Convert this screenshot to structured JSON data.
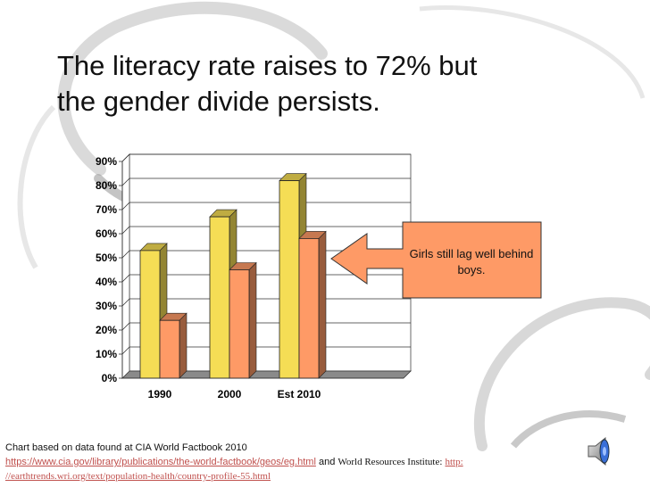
{
  "slide": {
    "title_line1": "The literacy rate raises to 72% but",
    "title_line2": "the gender divide persists.",
    "callout": "Girls still lag well behind boys.",
    "source_line1": "Chart based on data found at CIA World Factbook 2010",
    "source_link1": "https://www.cia.gov/library/publications/the-world-factbook/geos/eg.html",
    "source_and": "and",
    "source_wri": "World Resources Institute:",
    "source_link2_part1": "http:",
    "source_link2_part2": "//earthtrends.wri.org/text/population-health/country-profile-55.html",
    "speaker_icon": "speaker-icon"
  },
  "colors": {
    "boys": "#f5dd55",
    "girls": "#fe9a66",
    "callout_fill": "#fe9a66",
    "link": "#c0504d"
  },
  "chart_data": {
    "type": "bar",
    "categories": [
      "1990",
      "2000",
      "Est 2010"
    ],
    "series": [
      {
        "values": [
          53,
          67,
          82
        ]
      },
      {
        "values": [
          24,
          45,
          58
        ]
      }
    ],
    "ylim": [
      0,
      90
    ],
    "ytick_labels": [
      "0%",
      "10%",
      "20%",
      "30%",
      "40%",
      "50%",
      "60%",
      "70%",
      "80%",
      "90%"
    ],
    "grid": true,
    "legend": "none",
    "style": "3d"
  }
}
